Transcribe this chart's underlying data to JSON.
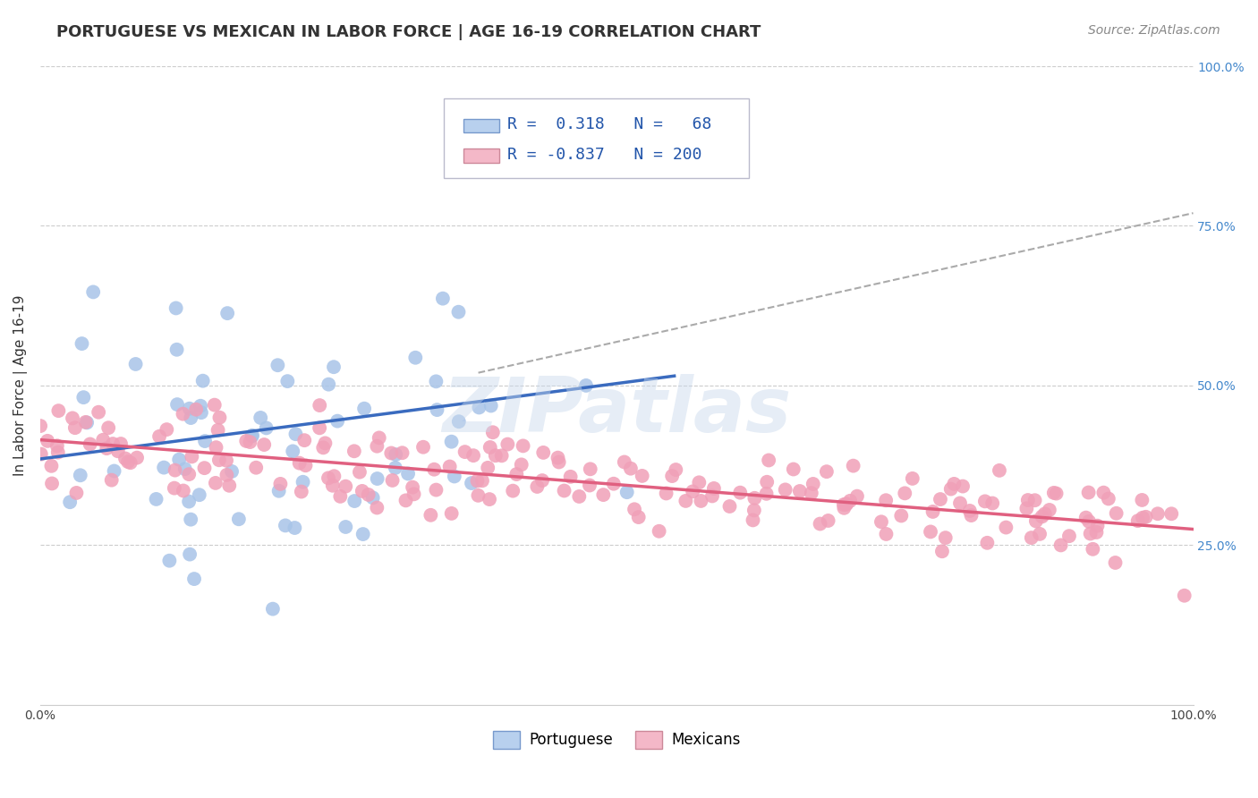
{
  "title": "PORTUGUESE VS MEXICAN IN LABOR FORCE | AGE 16-19 CORRELATION CHART",
  "source_text": "Source: ZipAtlas.com",
  "ylabel": "In Labor Force | Age 16-19",
  "xlim": [
    0.0,
    1.0
  ],
  "ylim": [
    0.0,
    1.0
  ],
  "ytick_positions_right": [
    0.25,
    0.5,
    0.75,
    1.0
  ],
  "ytick_labels_right": [
    "25.0%",
    "50.0%",
    "75.0%",
    "100.0%"
  ],
  "grid_color": "#cccccc",
  "background_color": "#ffffff",
  "portuguese": {
    "R": 0.318,
    "N": 68,
    "scatter_color": "#a8c4e8",
    "line_color": "#3a6bbf",
    "legend_face": "#b8d0ee",
    "legend_edge": "#7799cc"
  },
  "mexicans": {
    "R": -0.837,
    "N": 200,
    "scatter_color": "#f0a0b8",
    "line_color": "#e06080",
    "legend_face": "#f4b8c8",
    "legend_edge": "#cc8899"
  },
  "dashed_line_color": "#aaaaaa",
  "title_color": "#333333",
  "title_fontsize": 13,
  "source_fontsize": 10,
  "label_fontsize": 11,
  "tick_fontsize": 10,
  "legend_fontsize": 13,
  "watermark_color": "#c8d8ec",
  "watermark_alpha": 0.45,
  "blue_line": {
    "x0": 0.0,
    "y0": 0.385,
    "x1": 0.55,
    "y1": 0.515
  },
  "pink_line": {
    "x0": 0.0,
    "y0": 0.415,
    "x1": 1.0,
    "y1": 0.275
  },
  "dash_line": {
    "x0": 0.38,
    "y0": 0.52,
    "x1": 1.0,
    "y1": 0.77
  }
}
